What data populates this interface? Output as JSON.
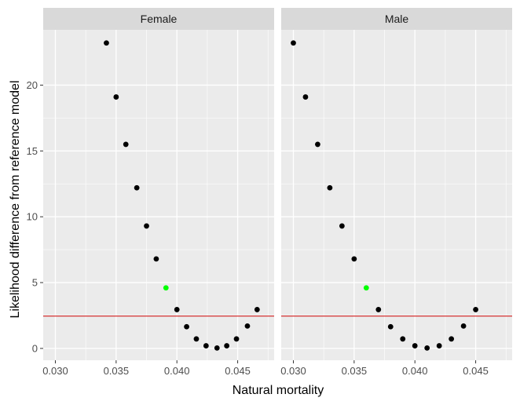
{
  "chart_data": {
    "type": "scatter",
    "xlabel": "Natural mortality",
    "ylabel": "Likelihood difference from reference model",
    "xlim": [
      0.029,
      0.048
    ],
    "ylim": [
      -0.9,
      24.2
    ],
    "xticks": [
      0.03,
      0.035,
      0.04,
      0.045
    ],
    "xtick_labels": [
      "0.030",
      "0.035",
      "0.040",
      "0.045"
    ],
    "yticks": [
      0,
      5,
      10,
      15,
      20
    ],
    "ytick_labels": [
      "0",
      "5",
      "10",
      "15",
      "20"
    ],
    "reference_line": {
      "y": 2.45,
      "color": "#cc0000"
    },
    "grid": true,
    "colors": {
      "panel_bg": "#ebebeb",
      "strip_bg": "#d9d9d9",
      "grid": "#ffffff",
      "point": "#000000",
      "highlight": "#00ff00"
    },
    "panels": [
      {
        "name": "Female",
        "points": [
          {
            "x": 0.0342,
            "y": 23.2
          },
          {
            "x": 0.035,
            "y": 19.1
          },
          {
            "x": 0.0358,
            "y": 15.5
          },
          {
            "x": 0.0367,
            "y": 12.2
          },
          {
            "x": 0.0375,
            "y": 9.3
          },
          {
            "x": 0.0383,
            "y": 6.8
          },
          {
            "x": 0.0391,
            "y": 4.6,
            "highlight": true
          },
          {
            "x": 0.04,
            "y": 2.95
          },
          {
            "x": 0.0408,
            "y": 1.65
          },
          {
            "x": 0.0416,
            "y": 0.72
          },
          {
            "x": 0.0424,
            "y": 0.2
          },
          {
            "x": 0.0433,
            "y": 0.03
          },
          {
            "x": 0.0441,
            "y": 0.2
          },
          {
            "x": 0.0449,
            "y": 0.72
          },
          {
            "x": 0.0458,
            "y": 1.7
          },
          {
            "x": 0.0466,
            "y": 2.95
          }
        ]
      },
      {
        "name": "Male",
        "points": [
          {
            "x": 0.03,
            "y": 23.2
          },
          {
            "x": 0.031,
            "y": 19.1
          },
          {
            "x": 0.032,
            "y": 15.5
          },
          {
            "x": 0.033,
            "y": 12.2
          },
          {
            "x": 0.034,
            "y": 9.3
          },
          {
            "x": 0.035,
            "y": 6.8
          },
          {
            "x": 0.036,
            "y": 4.6,
            "highlight": true
          },
          {
            "x": 0.037,
            "y": 2.95
          },
          {
            "x": 0.038,
            "y": 1.65
          },
          {
            "x": 0.039,
            "y": 0.72
          },
          {
            "x": 0.04,
            "y": 0.2
          },
          {
            "x": 0.041,
            "y": 0.03
          },
          {
            "x": 0.042,
            "y": 0.2
          },
          {
            "x": 0.043,
            "y": 0.72
          },
          {
            "x": 0.044,
            "y": 1.7
          },
          {
            "x": 0.045,
            "y": 2.95
          }
        ]
      }
    ]
  }
}
